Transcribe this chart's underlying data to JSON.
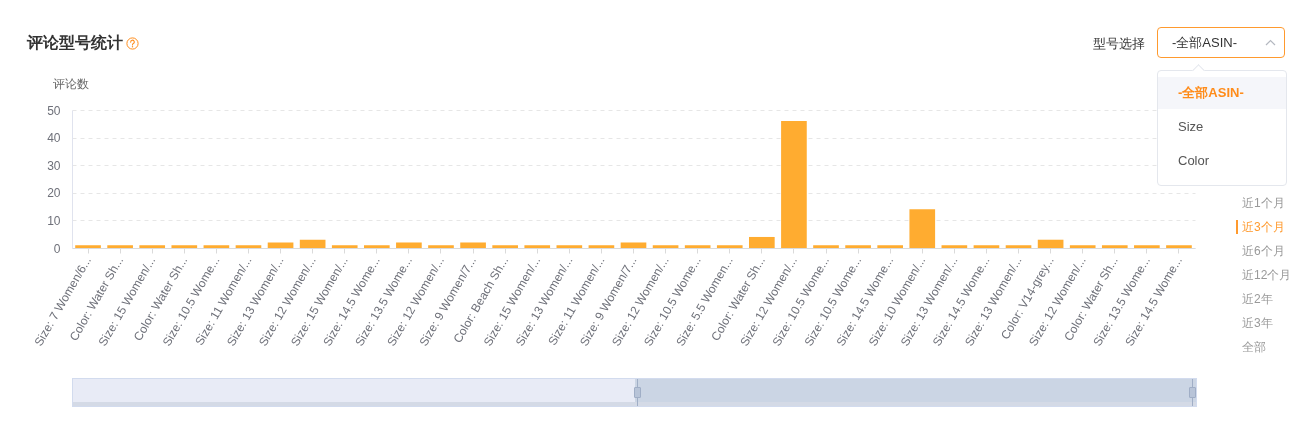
{
  "chart_data": {
    "type": "bar",
    "title": "评论型号统计",
    "ylabel": "评论数",
    "categories": [
      "Size: 7 Women/6...",
      "Color: Water Sh...",
      "Size: 15 Women/...",
      "Color: Water Sh...",
      "Size: 10.5 Wome...",
      "Size: 11 Women/...",
      "Size: 13 Women/...",
      "Size: 12 Women/...",
      "Size: 15 Women/...",
      "Size: 14.5 Wome...",
      "Size: 13.5 Wome...",
      "Size: 12 Women/...",
      "Size: 9 Women/7...",
      "Color: Beach Sh...",
      "Size: 15 Women/...",
      "Size: 13 Women/...",
      "Size: 11 Women/...",
      "Size: 9 Women/7...",
      "Size: 12 Women/...",
      "Size: 10.5 Wome...",
      "Size: 5.5 Women...",
      "Color: Water Sh...",
      "Size: 12 Women/...",
      "Size: 10.5 Wome...",
      "Size: 10.5 Wome...",
      "Size: 14.5 Wome...",
      "Size: 10 Women/...",
      "Size: 13 Women/...",
      "Size: 14.5 Wome...",
      "Size: 13 Women/...",
      "Color: V14-grey...",
      "Size: 12 Women/...",
      "Color: Water Sh...",
      "Size: 13.5 Wome...",
      "Size: 14.5 Wome..."
    ],
    "values": [
      1,
      1,
      1,
      1,
      1,
      1,
      2,
      3,
      1,
      1,
      2,
      1,
      2,
      1,
      1,
      1,
      1,
      2,
      1,
      1,
      1,
      4,
      46,
      1,
      1,
      1,
      14,
      1,
      1,
      1,
      3,
      1,
      1,
      1,
      1
    ],
    "color": "#ffac30",
    "ylim": [
      0,
      50
    ],
    "yticks": [
      0,
      10,
      20,
      30,
      40,
      50
    ],
    "grid": "y",
    "annotations": [
      "型号选择",
      "-全部ASIN-",
      "-全部ASIN-",
      "Size",
      "Color",
      "近1个月",
      "近3个月",
      "近6个月",
      "近12个月",
      "近2年",
      "近3年",
      "全部"
    ]
  }
}
